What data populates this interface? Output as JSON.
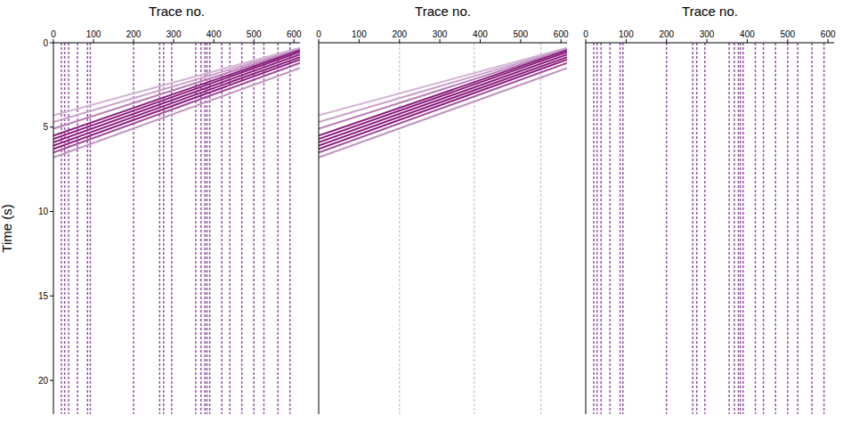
{
  "chart_data": [
    {
      "type": "line",
      "x_label": "Trace no.",
      "y_label": "Time (s)",
      "x": [
        0,
        615
      ],
      "xlim": [
        0,
        615
      ],
      "xticks": [
        0,
        100,
        200,
        300,
        400,
        500,
        600
      ],
      "ylim": [
        0,
        22
      ],
      "yticks": [
        0,
        5,
        10,
        15,
        20
      ],
      "series": [
        {
          "color": "#d3b3d6",
          "values": [
            4.3,
            0.3
          ]
        },
        {
          "color": "#c9a0c8",
          "values": [
            4.7,
            0.35
          ]
        },
        {
          "color": "#b77fb6",
          "values": [
            5.1,
            0.4
          ]
        },
        {
          "color": "#8a1e7c",
          "values": [
            5.5,
            0.45
          ]
        },
        {
          "color": "#8a1e7c",
          "values": [
            5.7,
            0.55
          ]
        },
        {
          "color": "#8a1e7c",
          "values": [
            5.9,
            0.7
          ]
        },
        {
          "color": "#8a1e7c",
          "values": [
            6.1,
            0.85
          ]
        },
        {
          "color": "#8a1e7c",
          "values": [
            6.3,
            1.0
          ]
        },
        {
          "color": "#a04a98",
          "values": [
            6.5,
            1.2
          ]
        },
        {
          "color": "#c090c0",
          "values": [
            6.8,
            1.5
          ]
        }
      ],
      "trace_lines": {
        "color": "#7b2a8c",
        "x": [
          20,
          28,
          38,
          60,
          85,
          92,
          200,
          265,
          275,
          295,
          355,
          368,
          378,
          383,
          390,
          420,
          440,
          470,
          500,
          525,
          560,
          590
        ]
      }
    },
    {
      "type": "line",
      "x_label": "Trace no.",
      "x": [
        0,
        615
      ],
      "xlim": [
        0,
        615
      ],
      "xticks": [
        0,
        100,
        200,
        300,
        400,
        500,
        600
      ],
      "ylim": [
        0,
        22
      ],
      "yticks": [
        0,
        5,
        10,
        15,
        20
      ],
      "tick_labels": "x",
      "series": [
        {
          "color": "#d3b3d6",
          "values": [
            4.3,
            0.3
          ]
        },
        {
          "color": "#c9a0c8",
          "values": [
            4.7,
            0.35
          ]
        },
        {
          "color": "#b77fb6",
          "values": [
            5.1,
            0.4
          ]
        },
        {
          "color": "#8a1e7c",
          "values": [
            5.5,
            0.45
          ]
        },
        {
          "color": "#8a1e7c",
          "values": [
            5.7,
            0.55
          ]
        },
        {
          "color": "#8a1e7c",
          "values": [
            5.9,
            0.7
          ]
        },
        {
          "color": "#8a1e7c",
          "values": [
            6.1,
            0.85
          ]
        },
        {
          "color": "#8a1e7c",
          "values": [
            6.3,
            1.0
          ]
        },
        {
          "color": "#a04a98",
          "values": [
            6.5,
            1.2
          ]
        },
        {
          "color": "#c090c0",
          "values": [
            6.8,
            1.5
          ]
        }
      ],
      "trace_lines": {
        "color": "#d2b4d8",
        "x": [
          200,
          385,
          550
        ]
      }
    },
    {
      "type": "line",
      "x_label": "Trace no.",
      "x": [
        0,
        615
      ],
      "xlim": [
        0,
        615
      ],
      "xticks": [
        0,
        100,
        200,
        300,
        400,
        500,
        600
      ],
      "ylim": [
        0,
        22
      ],
      "yticks": [
        0,
        5,
        10,
        15,
        20
      ],
      "tick_labels": "x",
      "series": [],
      "trace_lines": {
        "color": "#7b2a8c",
        "x": [
          20,
          28,
          38,
          60,
          85,
          92,
          200,
          265,
          275,
          295,
          355,
          368,
          378,
          383,
          390,
          420,
          440,
          470,
          500,
          525,
          560,
          590
        ]
      }
    }
  ]
}
